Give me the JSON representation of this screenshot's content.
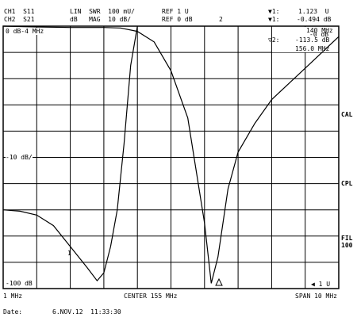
{
  "header": {
    "ch1": "CH1  S11",
    "ch2": "CH2  S21",
    "ch1_format": "LIN  SWR  100 mU/",
    "ch2_format": "dB   MAG  10 dB/",
    "ch1_ref": "REF 1 U",
    "ch2_ref": "REF 0 dB",
    "marker_label_2": "2",
    "marker1_label": "▼1:",
    "marker1_value": "1.123  U",
    "marker1_value_ch2": "-0.494 dB",
    "marker1_sub_label": "▼1:",
    "marker2_label": "▽2:",
    "marker2_value": "-113.5 dB",
    "marker2_freq": "156.0 MHz",
    "marker_box_top": "140 MHz",
    "marker_box_sub": "-0 dB"
  },
  "plot_labels": {
    "top_ref": "0 dB-4 MHz",
    "mid_ref": "-10 dB/",
    "bottom_ref": "-100 dB",
    "marker_arrow": "◀ 1 U"
  },
  "footer": {
    "start": "1 MHz",
    "center": "CENTER 155 MHz",
    "span": "SPAN 10 MHz",
    "date_label": "Date:",
    "date_value": "6.NOV.12  11:33:30"
  },
  "softkeys": {
    "cal": "CAL",
    "cpl": "CPL",
    "fil": "FIL",
    "fil_value": "100"
  },
  "chart_data": {
    "type": "line",
    "xlim": [
      150,
      160
    ],
    "ylim": [
      -100,
      0
    ],
    "grid": true,
    "xlabel": "",
    "ylabel": "",
    "series": [
      {
        "x": [
          150.0,
          150.5,
          151.0,
          151.5,
          152.0,
          152.5,
          152.8,
          153.0,
          153.2,
          153.4,
          153.6,
          153.8,
          154.0
        ],
        "y": [
          -70.0,
          -70.5,
          -72.0,
          -76.0,
          -84.0,
          -92.0,
          -97.0,
          -94.0,
          -84.0,
          -70.0,
          -45.0,
          -15.0,
          0.0
        ],
        "color": "#000000"
      },
      {
        "x": [
          150.0,
          151.0,
          152.0,
          153.0,
          153.5,
          154.0,
          154.5,
          155.0,
          155.5,
          156.0,
          156.2,
          156.4,
          156.7,
          157.0,
          157.5,
          158.0,
          159.0,
          160.0
        ],
        "y": [
          0.0,
          -0.3,
          -0.5,
          -0.5,
          -0.7,
          -2.0,
          -6.0,
          -17.0,
          -35.0,
          -75.0,
          -98.0,
          -88.0,
          -62.0,
          -48.0,
          -37.0,
          -28.0,
          -16.0,
          -4.0
        ],
        "color": "#000000"
      }
    ]
  }
}
